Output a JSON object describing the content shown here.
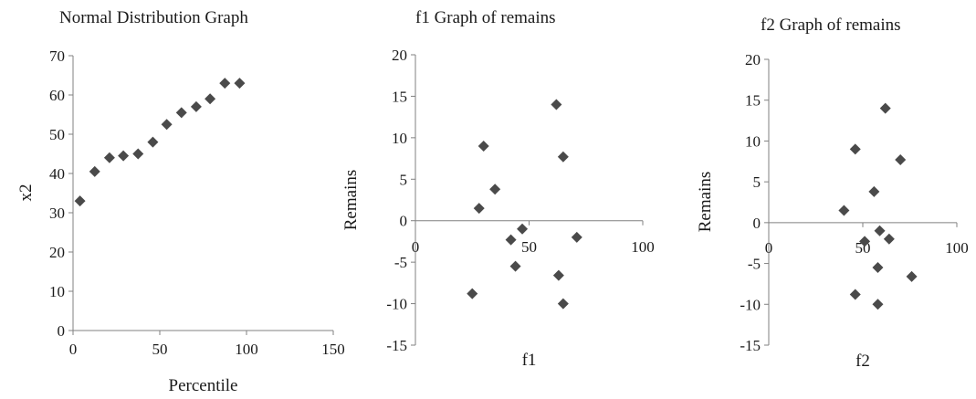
{
  "chart_data": [
    {
      "type": "scatter",
      "title": "Normal Distribution Graph",
      "xlabel": "Percentile",
      "ylabel": "x2",
      "xlim": [
        0,
        150
      ],
      "ylim": [
        0,
        70
      ],
      "xticks": [
        "0",
        "50",
        "100",
        "150"
      ],
      "yticks": [
        "0",
        "10",
        "20",
        "30",
        "40",
        "50",
        "60",
        "70"
      ],
      "grid": false,
      "marker": "diamond",
      "color": "#4a4a4a",
      "points": [
        {
          "x": 4,
          "y": 33
        },
        {
          "x": 12.5,
          "y": 40.5
        },
        {
          "x": 21,
          "y": 44
        },
        {
          "x": 29,
          "y": 44.5
        },
        {
          "x": 37.5,
          "y": 45
        },
        {
          "x": 46,
          "y": 48
        },
        {
          "x": 54,
          "y": 52.5
        },
        {
          "x": 62.5,
          "y": 55.5
        },
        {
          "x": 71,
          "y": 57
        },
        {
          "x": 79,
          "y": 59
        },
        {
          "x": 87.5,
          "y": 63
        },
        {
          "x": 96,
          "y": 63
        }
      ]
    },
    {
      "type": "scatter",
      "title": "f1 Graph of remains",
      "xlabel": "f1",
      "ylabel": "Remains",
      "xlim": [
        0,
        100
      ],
      "ylim": [
        -15,
        20
      ],
      "xticks": [
        "0",
        "50",
        "100"
      ],
      "yticks": [
        "-15",
        "-10",
        "-5",
        "0",
        "5",
        "10",
        "15",
        "20"
      ],
      "grid": false,
      "marker": "diamond",
      "color": "#4a4a4a",
      "points": [
        {
          "x": 28,
          "y": 1.5
        },
        {
          "x": 30,
          "y": 9
        },
        {
          "x": 35,
          "y": 3.8
        },
        {
          "x": 25,
          "y": -8.8
        },
        {
          "x": 42,
          "y": -2.3
        },
        {
          "x": 44,
          "y": -5.5
        },
        {
          "x": 47,
          "y": -1
        },
        {
          "x": 62,
          "y": 14
        },
        {
          "x": 65,
          "y": 7.7
        },
        {
          "x": 63,
          "y": -6.6
        },
        {
          "x": 65,
          "y": -10
        },
        {
          "x": 71,
          "y": -2
        }
      ]
    },
    {
      "type": "scatter",
      "title": "f2 Graph of remains",
      "xlabel": "f2",
      "ylabel": "Remains",
      "xlim": [
        0,
        100
      ],
      "ylim": [
        -15,
        20
      ],
      "xticks": [
        "0",
        "50",
        "100"
      ],
      "yticks": [
        "-15",
        "-10",
        "-5",
        "0",
        "5",
        "10",
        "15",
        "20"
      ],
      "grid": false,
      "marker": "diamond",
      "color": "#4a4a4a",
      "points": [
        {
          "x": 40,
          "y": 1.5
        },
        {
          "x": 46,
          "y": 9
        },
        {
          "x": 46,
          "y": -8.8
        },
        {
          "x": 51,
          "y": -2.3
        },
        {
          "x": 56,
          "y": 3.8
        },
        {
          "x": 58,
          "y": -5.5
        },
        {
          "x": 58,
          "y": -10
        },
        {
          "x": 59,
          "y": -1
        },
        {
          "x": 62,
          "y": 14
        },
        {
          "x": 64,
          "y": -2
        },
        {
          "x": 70,
          "y": 7.7
        },
        {
          "x": 76,
          "y": -6.6
        }
      ]
    }
  ]
}
